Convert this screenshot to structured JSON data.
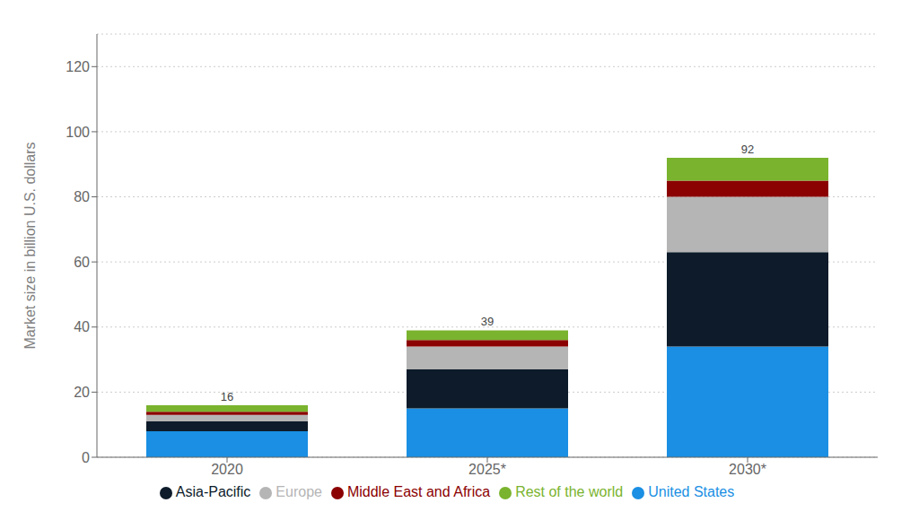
{
  "chart_data": {
    "type": "bar",
    "stacked": true,
    "categories": [
      "2020",
      "2025*",
      "2030*"
    ],
    "series": [
      {
        "name": "United States",
        "color": "#1a8fe3",
        "values": [
          8.0,
          15.0,
          34.0
        ]
      },
      {
        "name": "Asia-Pacific",
        "color": "#0d1b2a",
        "values": [
          3.0,
          12.0,
          29.0
        ]
      },
      {
        "name": "Europe",
        "color": "#b5b5b5",
        "values": [
          2.0,
          7.0,
          17.0
        ]
      },
      {
        "name": "Middle East and Africa",
        "color": "#8b0000",
        "values": [
          1.0,
          2.0,
          5.0
        ]
      },
      {
        "name": "Rest of the world",
        "color": "#7ab32e",
        "values": [
          2.0,
          3.0,
          7.0
        ]
      }
    ],
    "totals": [
      16,
      39,
      92
    ],
    "ylabel": "Market size in billion U.S. dollars",
    "ylim": [
      0,
      130
    ],
    "yticks": [
      0,
      20,
      40,
      60,
      80,
      100,
      120
    ],
    "grid": true,
    "legend": "bottom"
  }
}
